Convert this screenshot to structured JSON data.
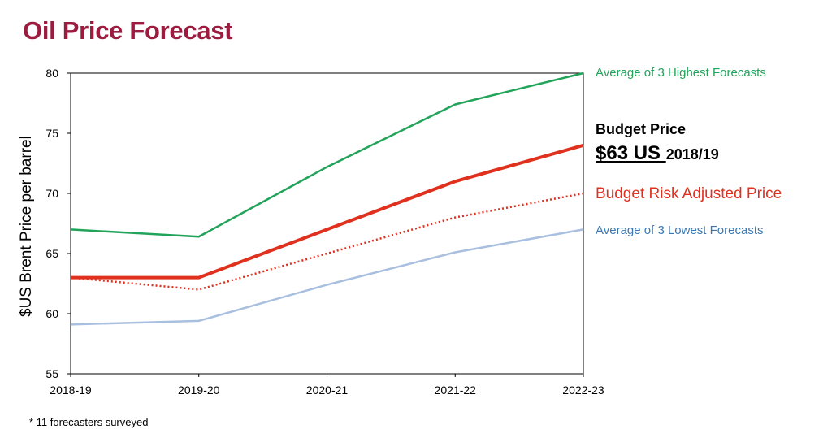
{
  "page": {
    "title": "Oil Price Forecast",
    "footnote": "* 11 forecasters surveyed"
  },
  "annotations": {
    "budget_label": "Budget Price",
    "budget_price_big": "$63 US ",
    "budget_price_small": "2018/19"
  },
  "colors": {
    "title": "#9b1c3f",
    "high": "#22a35a",
    "budget": "#e0301e",
    "risk": "#e0301e",
    "low": "#a9bfdf",
    "low_label": "#3a78b5"
  },
  "chart_data": {
    "type": "line",
    "title": "Oil Price Forecast",
    "xlabel": "",
    "ylabel": "$US Brent Price per barrel",
    "categories": [
      "2018-19",
      "2019-20",
      "2020-21",
      "2021-22",
      "2022-23"
    ],
    "ylim": [
      55,
      80
    ],
    "yticks": [
      55,
      60,
      65,
      70,
      75,
      80
    ],
    "grid": false,
    "legend_placement": "right (inline labels at line ends)",
    "series": [
      {
        "key": "high",
        "name": "Average of 3 Highest Forecasts",
        "style": "solid",
        "values": [
          67,
          66.4,
          72.2,
          77.4,
          80
        ]
      },
      {
        "key": "budget",
        "name": "Budget Price",
        "style": "solid-thick",
        "values": [
          63,
          63,
          67,
          71,
          74
        ]
      },
      {
        "key": "risk",
        "name": "Budget Risk Adjusted Price",
        "style": "dotted",
        "values": [
          63,
          62,
          65,
          68,
          70
        ]
      },
      {
        "key": "low",
        "name": "Average of 3 Lowest Forecasts",
        "style": "solid",
        "values": [
          59.1,
          59.4,
          62.4,
          65.1,
          67
        ]
      }
    ]
  }
}
